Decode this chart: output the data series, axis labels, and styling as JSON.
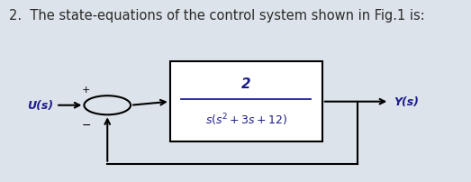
{
  "title": "2.  The state-equations of the control system shown in Fig.1 is:",
  "title_fontsize": 10.5,
  "title_color": "#2a2a2a",
  "background_color": "#dde3ea",
  "inner_bg_color": "#ffffff",
  "tf_numerator": "2",
  "tf_denominator": "s(s^2 + 3s + 12)",
  "label_us": "U(s)",
  "label_ys": "Y(s)",
  "label_plus": "+",
  "label_minus": "−",
  "line_color": "#000000",
  "box_color": "#000000",
  "text_color": "#1c1c8a",
  "figsize": [
    5.23,
    2.03
  ],
  "dpi": 100
}
